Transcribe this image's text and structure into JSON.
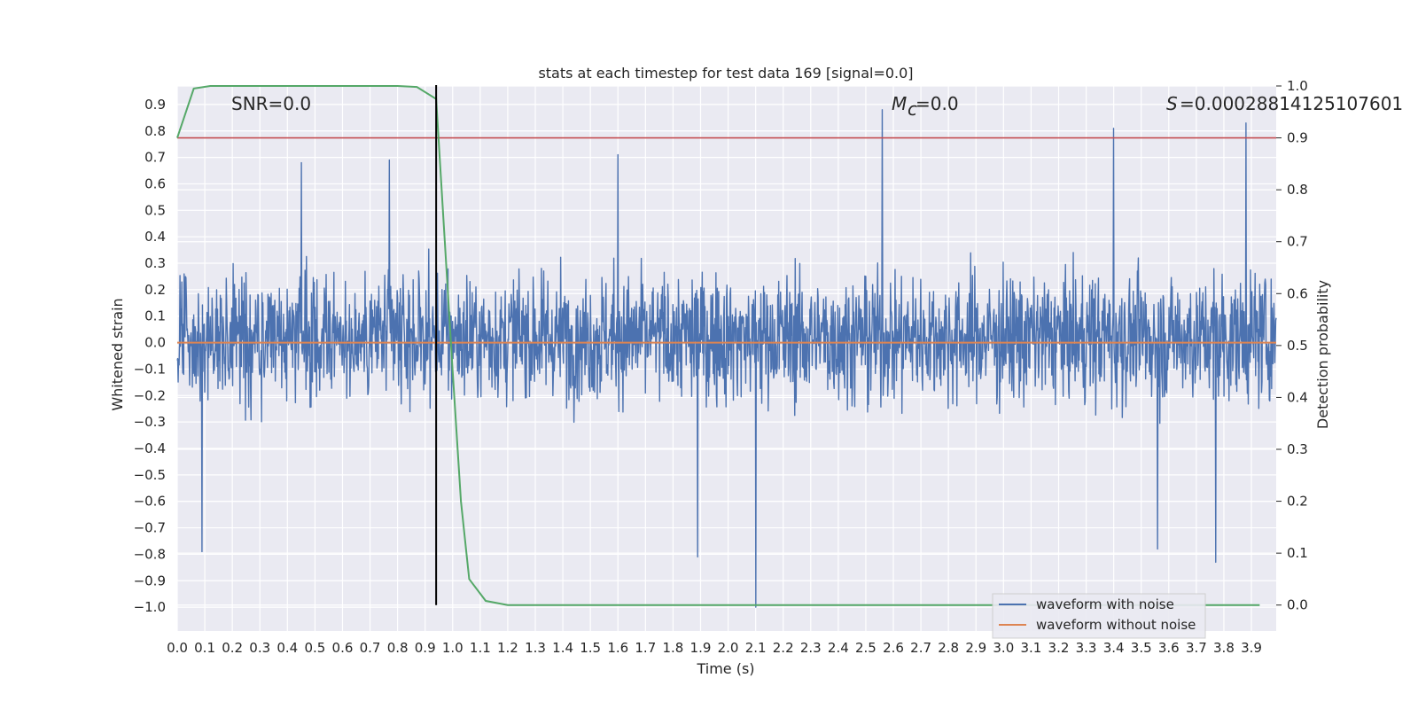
{
  "chart_data": {
    "type": "line",
    "title": "stats at each timestep for test data 169 [signal=0.0]",
    "xlabel": "Time (s)",
    "ylabel": "Whitened strain",
    "y2label": "Detection probability",
    "xlim": [
      0.0,
      3.99
    ],
    "ylim": [
      -1.09,
      0.97
    ],
    "y2lim": [
      -0.05,
      1.0
    ],
    "x_ticks": [
      "0.0",
      "0.1",
      "0.2",
      "0.3",
      "0.4",
      "0.5",
      "0.6",
      "0.7",
      "0.8",
      "0.9",
      "1.0",
      "1.1",
      "1.2",
      "1.3",
      "1.4",
      "1.5",
      "1.6",
      "1.7",
      "1.8",
      "1.9",
      "2.0",
      "2.1",
      "2.2",
      "2.3",
      "2.4",
      "2.5",
      "2.6",
      "2.7",
      "2.8",
      "2.9",
      "3.0",
      "3.1",
      "3.2",
      "3.3",
      "3.4",
      "3.5",
      "3.6",
      "3.7",
      "3.8",
      "3.9"
    ],
    "y_ticks": [
      "0.9",
      "0.8",
      "0.7",
      "0.6",
      "0.5",
      "0.4",
      "0.3",
      "0.2",
      "0.1",
      "0.0",
      "−0.1",
      "−0.2",
      "−0.3",
      "−0.4",
      "−0.5",
      "−0.6",
      "−0.7",
      "−0.8",
      "−0.9",
      "−1.0"
    ],
    "y2_ticks": [
      "1.0",
      "0.9",
      "0.8",
      "0.7",
      "0.6",
      "0.5",
      "0.4",
      "0.3",
      "0.2",
      "0.1",
      "0.0"
    ],
    "annotations": {
      "snr": "SNR=0.0",
      "mc": "=0.0",
      "mc_symbol": "M",
      "mc_subscript": "c",
      "s": "=0.00028814125107601",
      "s_symbol": "S"
    },
    "series": [
      {
        "name": "waveform with noise",
        "color": "#4c72b0",
        "axis": "left",
        "style": "dense noise, amplitude mostly within -0.5 to 0.55",
        "peaks": [
          {
            "x": 0.09,
            "y": -0.79
          },
          {
            "x": 0.45,
            "y": 0.68
          },
          {
            "x": 0.77,
            "y": 0.69
          },
          {
            "x": 1.6,
            "y": 0.71
          },
          {
            "x": 1.89,
            "y": -0.81
          },
          {
            "x": 2.1,
            "y": -1.0
          },
          {
            "x": 2.56,
            "y": 0.88
          },
          {
            "x": 3.4,
            "y": 0.81
          },
          {
            "x": 3.56,
            "y": -0.78
          },
          {
            "x": 3.77,
            "y": -0.83
          },
          {
            "x": 3.88,
            "y": 0.83
          }
        ]
      },
      {
        "name": "waveform without noise",
        "color": "#dd8452",
        "axis": "left",
        "x": [
          0.0,
          3.99
        ],
        "values": [
          0.0,
          0.0
        ]
      },
      {
        "name": "detection probability",
        "color": "#55a868",
        "axis": "right",
        "x": [
          0.0,
          0.06,
          0.12,
          0.18,
          0.3,
          0.5,
          0.7,
          0.8,
          0.87,
          0.94,
          1.0,
          1.03,
          1.06,
          1.12,
          1.2,
          1.5,
          2.0,
          2.5,
          3.0,
          3.5,
          3.93
        ],
        "values": [
          0.9,
          0.995,
          1.0,
          1.0,
          1.0,
          1.0,
          1.0,
          1.0,
          0.998,
          0.975,
          0.45,
          0.2,
          0.05,
          0.008,
          0.0,
          0.0,
          0.0,
          0.0,
          0.0,
          0.0,
          0.0
        ]
      }
    ],
    "threshold": {
      "axis": "right",
      "value": 0.9,
      "color": "#c44e52"
    },
    "vline": {
      "x": 0.94,
      "color": "#000000"
    },
    "legend": {
      "placement": "bottom-right",
      "items": [
        {
          "label": "waveform with noise",
          "color": "#4c72b0"
        },
        {
          "label": "waveform without noise",
          "color": "#dd8452"
        }
      ]
    },
    "colors": {
      "plot_bg": "#eaeaf2",
      "grid": "#ffffff",
      "text": "#262626"
    }
  }
}
